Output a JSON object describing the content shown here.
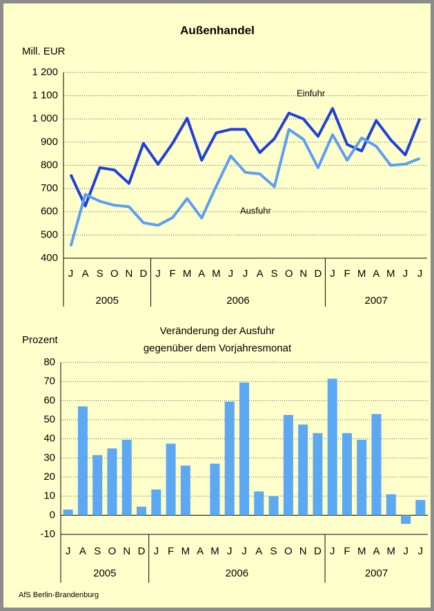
{
  "chart_data": [
    {
      "type": "line",
      "title": "Außenhandel",
      "y_label": "Mill. EUR",
      "groups": [
        {
          "label": "2005",
          "categories": [
            "J",
            "A",
            "S",
            "O",
            "N",
            "D"
          ]
        },
        {
          "label": "2006",
          "categories": [
            "J",
            "F",
            "M",
            "A",
            "M",
            "J",
            "J",
            "A",
            "S",
            "O",
            "N",
            "D"
          ]
        },
        {
          "label": "2007",
          "categories": [
            "J",
            "F",
            "M",
            "A",
            "M",
            "J",
            "J"
          ]
        }
      ],
      "series": [
        {
          "name": "Einfuhr",
          "color": "#1f3fe0",
          "values": [
            760,
            625,
            790,
            780,
            722,
            895,
            805,
            895,
            1003,
            822,
            940,
            955,
            955,
            855,
            915,
            1025,
            1000,
            925,
            1045,
            890,
            862,
            993,
            910,
            845,
            1002
          ]
        },
        {
          "name": "Ausfuhr",
          "color": "#5b9ff5",
          "values": [
            452,
            675,
            645,
            628,
            622,
            553,
            542,
            575,
            657,
            573,
            710,
            840,
            770,
            763,
            708,
            955,
            912,
            790,
            932,
            822,
            918,
            882,
            800,
            805,
            830
          ]
        }
      ],
      "ylim": [
        400,
        1200
      ],
      "yticks": [
        400,
        500,
        600,
        700,
        800,
        900,
        {
          "value": 1000,
          "label": "1 000"
        },
        {
          "value": 1100,
          "label": "1 100"
        },
        {
          "value": 1200,
          "label": "1 200"
        }
      ],
      "grid": true
    },
    {
      "type": "bar",
      "title": [
        "Veränderung der Ausfuhr",
        "gegenüber dem Vorjahresmonat"
      ],
      "y_label": "Prozent",
      "groups": [
        {
          "label": "2005",
          "categories": [
            "J",
            "A",
            "S",
            "O",
            "N",
            "D"
          ]
        },
        {
          "label": "2006",
          "categories": [
            "J",
            "F",
            "M",
            "A",
            "M",
            "J",
            "J",
            "A",
            "S",
            "O",
            "N",
            "D"
          ]
        },
        {
          "label": "2007",
          "categories": [
            "J",
            "F",
            "M",
            "A",
            "M",
            "J",
            "J"
          ]
        }
      ],
      "values": [
        3,
        57,
        31.5,
        35,
        39.5,
        4.5,
        13.5,
        37.5,
        26,
        null,
        27,
        59.5,
        69.5,
        12.5,
        10,
        52.5,
        47.5,
        43,
        71.5,
        43,
        39.5,
        53,
        11,
        -4.5,
        8
      ],
      "color": "#5ca8f2",
      "ylim": [
        -10,
        80
      ],
      "yticks": [
        -10,
        0,
        10,
        20,
        30,
        40,
        50,
        60,
        70,
        80
      ],
      "grid": true
    }
  ],
  "source": "AfS Berlin-Brandenburg"
}
